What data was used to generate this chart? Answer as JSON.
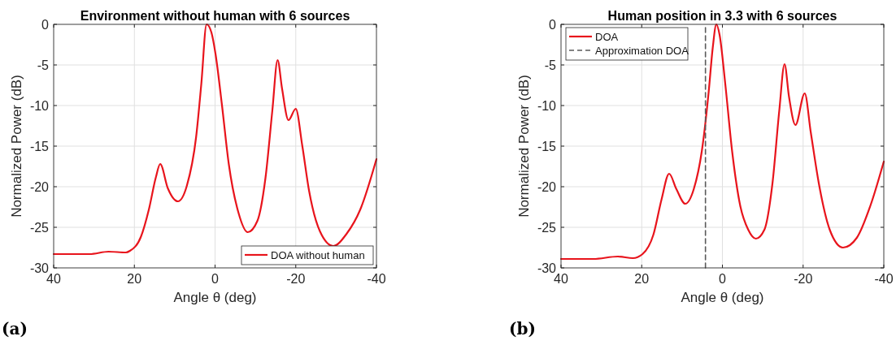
{
  "chart_data": [
    {
      "type": "line",
      "title": "Environment without human with 6 sources",
      "xlabel": "Angle θ (deg)",
      "ylabel": "Normalized Power (dB)",
      "annotations": [
        "(a)"
      ],
      "xlim": [
        40,
        -40
      ],
      "xticks": [
        40,
        20,
        0,
        -20,
        -40
      ],
      "ylim": [
        -30,
        0
      ],
      "yticks": [
        -30,
        -25,
        -20,
        -15,
        -10,
        -5,
        0
      ],
      "grid": true,
      "legend": "bottom right",
      "line_style": "solid",
      "series": [
        {
          "name": "DOA without human",
          "color": "#e8141c",
          "x": [
            40,
            31.1,
            26.4,
            22.1,
            21.1,
            18.4,
            16.4,
            14.7,
            13.6,
            11.7,
            9.2,
            7.0,
            4.7,
            3.4,
            2.1,
            0.9,
            -0.1,
            -1.7,
            -3.4,
            -5.8,
            -8.1,
            -10.5,
            -12.5,
            -14.2,
            -15.5,
            -16.6,
            -18.2,
            -20.0,
            -21.6,
            -23.3,
            -26.0,
            -29.3,
            -32.6,
            -36.0,
            -40
          ],
          "values": [
            -28.3,
            -28.3,
            -28.0,
            -28.1,
            -27.9,
            -26.2,
            -22.8,
            -18.9,
            -17.2,
            -20.2,
            -21.8,
            -19.9,
            -13.9,
            -7.3,
            0,
            -1.0,
            -3.6,
            -9.9,
            -17.2,
            -23.2,
            -25.6,
            -24.2,
            -18.9,
            -10.6,
            -4.4,
            -7.9,
            -11.8,
            -10.4,
            -14.9,
            -20.5,
            -25.5,
            -27.3,
            -25.8,
            -22.8,
            -16.6
          ]
        }
      ]
    },
    {
      "type": "line",
      "title": "Human position in 3.3 with 6 sources",
      "xlabel": "Angle θ (deg)",
      "ylabel": "Normalized Power (dB)",
      "annotations": [
        "(b)"
      ],
      "xlim": [
        40,
        -40
      ],
      "xticks": [
        40,
        20,
        0,
        -20,
        -40
      ],
      "ylim": [
        -30,
        0
      ],
      "yticks": [
        -30,
        -25,
        -20,
        -15,
        -10,
        -5,
        0
      ],
      "grid": true,
      "legend": "top left",
      "line_style": "solid",
      "series": [
        {
          "name": "DOA",
          "color": "#e8141c",
          "x": [
            40,
            32.0,
            25.9,
            22.2,
            19.8,
            17.1,
            15.1,
            13.2,
            11.4,
            9.2,
            7.1,
            5.1,
            3.4,
            2.4,
            1.5,
            0.7,
            -0.7,
            -2.4,
            -4.4,
            -6.4,
            -8.3,
            -10.4,
            -12.4,
            -14.1,
            -15.4,
            -16.5,
            -18.1,
            -20.4,
            -21.9,
            -23.9,
            -26.6,
            -29.9,
            -33.3,
            -36.7,
            -40
          ],
          "values": [
            -28.9,
            -28.9,
            -28.6,
            -28.8,
            -28.3,
            -25.9,
            -21.6,
            -18.4,
            -20.3,
            -22.1,
            -20.3,
            -15.6,
            -8.3,
            -2.9,
            0,
            -1.3,
            -7.3,
            -15.6,
            -22.3,
            -25.3,
            -26.4,
            -25.3,
            -19.6,
            -10.6,
            -4.9,
            -8.9,
            -12.4,
            -8.5,
            -13.3,
            -19.6,
            -25.3,
            -27.5,
            -26.3,
            -22.3,
            -16.9
          ]
        },
        {
          "name": "Approximation DOA",
          "color": "#5a5a5a",
          "line_style": "dashed",
          "x": [
            4.2,
            4.2
          ],
          "values": [
            -30,
            0
          ]
        }
      ]
    }
  ]
}
